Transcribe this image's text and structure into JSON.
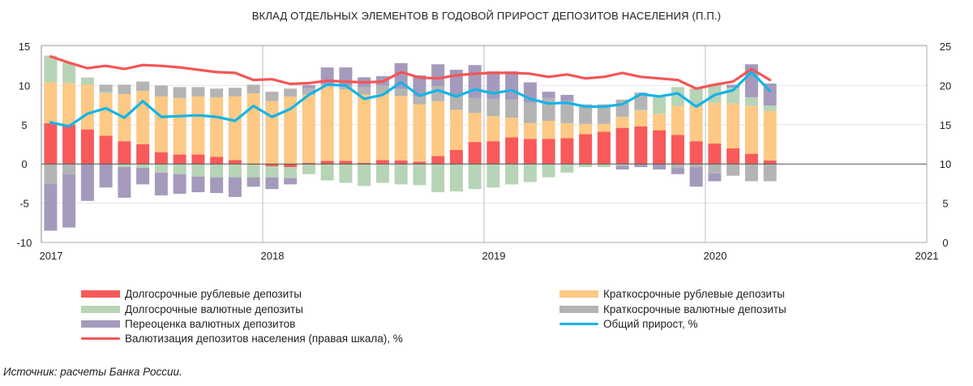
{
  "chart_data": {
    "type": "bar",
    "stacked": true,
    "title": "ВКЛАД ОТДЕЛЬНЫХ ЭЛЕМЕНТОВ В ГОДОВОЙ ПРИРОСТ ДЕПОЗИТОВ НАСЕЛЕНИЯ (П.П.)",
    "x_ticks": [
      "2017",
      "2018",
      "2019",
      "2020",
      "2021"
    ],
    "xlim": [
      "2017-01",
      "2021-01"
    ],
    "y_left": {
      "ticks": [
        "15",
        "10",
        "5",
        "0",
        "-5",
        "-10"
      ],
      "ylim": [
        -10,
        15
      ]
    },
    "y_right": {
      "ticks": [
        "25",
        "20",
        "15",
        "10",
        "5",
        "0"
      ],
      "ylim": [
        0,
        25
      ]
    },
    "grid": true,
    "legend_placement": "bottom",
    "dates": [
      "2017-01",
      "2017-02",
      "2017-03",
      "2017-04",
      "2017-05",
      "2017-06",
      "2017-07",
      "2017-08",
      "2017-09",
      "2017-10",
      "2017-11",
      "2017-12",
      "2018-01",
      "2018-02",
      "2018-03",
      "2018-04",
      "2018-05",
      "2018-06",
      "2018-07",
      "2018-08",
      "2018-09",
      "2018-10",
      "2018-11",
      "2018-12",
      "2019-01",
      "2019-02",
      "2019-03",
      "2019-04",
      "2019-05",
      "2019-06",
      "2019-07",
      "2019-08",
      "2019-09",
      "2019-10",
      "2019-11",
      "2019-12",
      "2020-01",
      "2020-02",
      "2020-03",
      "2020-04"
    ],
    "series": [
      {
        "name": "Долгосрочные рублевые депозиты",
        "kind": "bar",
        "color": "#f85a5a",
        "values": [
          5.2,
          5.0,
          4.4,
          3.6,
          2.9,
          2.5,
          1.5,
          1.2,
          1.2,
          0.9,
          0.5,
          -0.1,
          -0.3,
          -0.4,
          0.15,
          0.4,
          0.4,
          0.15,
          0.5,
          0.45,
          0.3,
          1.0,
          1.8,
          2.8,
          2.9,
          3.4,
          3.2,
          3.2,
          3.3,
          3.8,
          4.1,
          4.6,
          4.8,
          4.3,
          3.7,
          2.9,
          2.6,
          2.0,
          1.3,
          0.45
        ]
      },
      {
        "name": "Краткосрочные рублевые депозиты",
        "kind": "bar",
        "color": "#fdc985",
        "values": [
          5.2,
          5.3,
          5.7,
          5.4,
          6.0,
          6.8,
          7.1,
          7.2,
          7.4,
          7.6,
          8.1,
          9.0,
          8.0,
          8.6,
          8.7,
          9.6,
          9.1,
          8.7,
          8.4,
          8.2,
          7.3,
          7.0,
          5.1,
          3.7,
          3.2,
          2.5,
          2.0,
          2.3,
          1.9,
          1.3,
          1.0,
          1.4,
          2.0,
          2.1,
          3.7,
          4.4,
          5.2,
          5.7,
          6.1,
          6.3
        ]
      },
      {
        "name": "Долгосрочные валютные депозиты",
        "kind": "bar",
        "color": "#b7d4b6",
        "values": [
          3.4,
          2.6,
          0.8,
          0.2,
          -0.4,
          -0.5,
          -1.1,
          -1.3,
          -1.6,
          -1.7,
          -1.7,
          -1.6,
          -1.4,
          -1.4,
          -1.3,
          -2.1,
          -2.4,
          -2.8,
          -2.4,
          -2.6,
          -2.7,
          -3.6,
          -3.5,
          -3.2,
          -3.0,
          -2.6,
          -2.3,
          -1.7,
          -1.1,
          -0.4,
          -0.4,
          -0.2,
          0.1,
          2.1,
          2.4,
          2.3,
          2.4,
          2.0,
          1.1,
          0.7
        ]
      },
      {
        "name": "Краткосрочные валютные депозиты",
        "kind": "bar",
        "color": "#b4b4b4",
        "values": [
          -2.5,
          -1.3,
          0.1,
          0.9,
          1.2,
          1.2,
          1.4,
          1.4,
          1.2,
          1.1,
          1.1,
          1.1,
          1.2,
          1.0,
          0.8,
          0.1,
          0.5,
          0.9,
          1.1,
          0.9,
          1.0,
          1.9,
          1.7,
          1.9,
          2.2,
          2.3,
          2.6,
          2.9,
          2.8,
          2.5,
          2.5,
          2.2,
          2.2,
          0,
          -0.5,
          -0.4,
          -1.2,
          -1.5,
          -2.2,
          -2.2
        ]
      },
      {
        "name": "Переоценка валютных депозитов",
        "kind": "bar",
        "color": "#a59abc",
        "values": [
          -6.0,
          -6.8,
          -4.7,
          -3.0,
          -3.9,
          -2.1,
          -2.9,
          -2.5,
          -2.0,
          -2.0,
          -2.5,
          -1.2,
          -1.5,
          -0.8,
          0.4,
          2.2,
          2.3,
          1.3,
          1.2,
          3.3,
          2.7,
          2.8,
          3.4,
          4.2,
          3.5,
          3.6,
          2.6,
          0.8,
          0.8,
          0,
          0,
          -0.5,
          -0.4,
          -0.7,
          -0.8,
          -2.5,
          -1.0,
          0.4,
          4.2,
          2.8
        ]
      },
      {
        "name": "Общий прирост, %",
        "kind": "line",
        "axis": "left",
        "color": "#14b4e6",
        "values": [
          5.3,
          4.8,
          6.4,
          7.1,
          5.9,
          8.0,
          6.0,
          6.1,
          6.2,
          6.0,
          5.5,
          7.4,
          6.0,
          7.0,
          8.8,
          10.1,
          10.0,
          8.3,
          8.8,
          10.4,
          8.7,
          9.4,
          8.6,
          9.5,
          9.0,
          9.4,
          8.3,
          7.7,
          7.8,
          7.3,
          7.3,
          7.6,
          8.9,
          8.6,
          9.0,
          7.3,
          8.8,
          9.4,
          11.7,
          9.3
        ]
      },
      {
        "name": "Валютизация депозитов населения (правая шкала), %",
        "kind": "line",
        "axis": "right",
        "color": "#f45555",
        "values": [
          23.7,
          22.9,
          22.2,
          22.5,
          22.1,
          22.6,
          22.5,
          22.3,
          22.0,
          21.7,
          21.6,
          20.7,
          20.8,
          20.2,
          20.3,
          20.6,
          20.5,
          20.4,
          20.5,
          21.7,
          21.0,
          20.9,
          21.3,
          21.5,
          21.6,
          21.6,
          21.5,
          21.1,
          21.4,
          20.9,
          21.1,
          21.6,
          21.1,
          20.9,
          20.7,
          19.6,
          20.1,
          20.5,
          22.1,
          20.7
        ]
      }
    ]
  },
  "legend": [
    "Долгосрочные рублевые депозиты",
    "Краткосрочные рублевые депозиты",
    "Долгосрочные валютные депозиты",
    "Краткосрочные валютные депозиты",
    "Переоценка валютных депозитов",
    "Общий прирост, %",
    "Валютизация депозитов населения (правая шкала), %"
  ],
  "source": "Источник: расчеты Банка России."
}
